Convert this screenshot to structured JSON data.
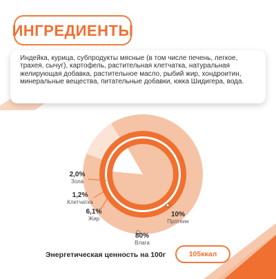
{
  "title": "ИНГРЕДИЕНТЫ",
  "ingredients_text": "Индейка, курица, субпродукты мясные (в том числе печень, легкое, трахея, сычуг), картофель, растительная клетчатка, натуральная желирующая добавка, растительное масло, рыбий жир, хондроитин, минеральные вещества, питательные добавки, юкка Шидигера, вода.",
  "colors": {
    "accent": "#ef7030",
    "light": "#f5c3a6",
    "pale": "#fbe3d5",
    "wedge": "#ffffff"
  },
  "chart_data": {
    "type": "pie",
    "segments": [
      {
        "label": "Влага",
        "value": 80,
        "display": "80%"
      },
      {
        "label": "Протеин",
        "value": 10,
        "display": "10%"
      },
      {
        "label": "Жир",
        "value": 6.1,
        "display": "6,1%"
      },
      {
        "label": "Клетчатка",
        "value": 1.2,
        "display": "1,2%"
      },
      {
        "label": "Зола",
        "value": 2.0,
        "display": "2,0%"
      }
    ]
  },
  "energy": {
    "label": "Энергетическая ценность на 100г",
    "value": "105ккал"
  }
}
